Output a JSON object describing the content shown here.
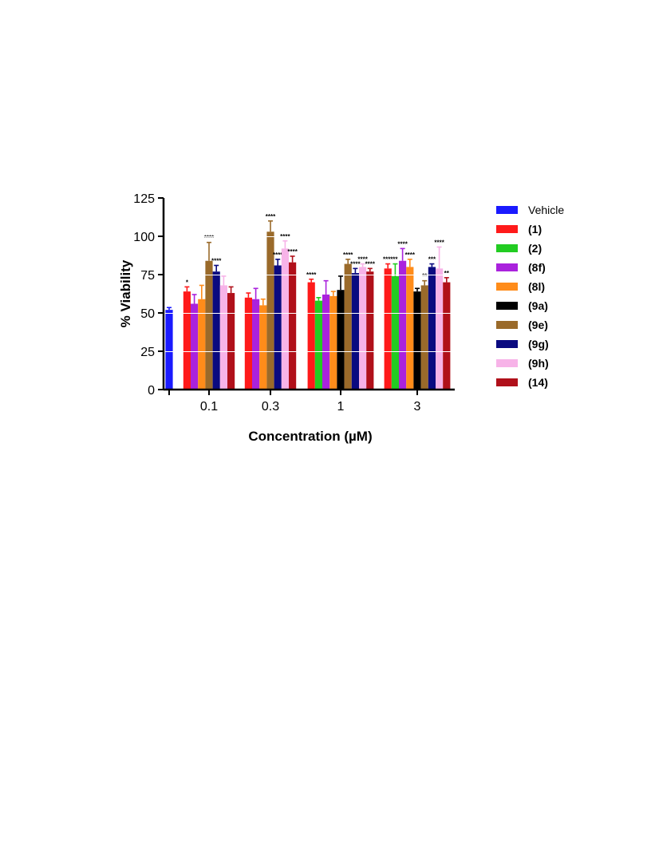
{
  "chart_data": {
    "type": "bar",
    "xlabel": "Concentration (µM)",
    "ylabel": "% Viability",
    "ylim": [
      0,
      125
    ],
    "yticks": [
      "0",
      "25",
      "50",
      "75",
      "100",
      "125"
    ],
    "categories": [
      "0.1",
      "0.3",
      "1",
      "3"
    ],
    "control": {
      "name": "Vehicle",
      "value": 52,
      "error": 1.5,
      "color": "#1a1aff"
    },
    "series": [
      {
        "name": "(1)",
        "color": "#ff1a1a",
        "values": [
          64,
          60,
          70,
          79
        ],
        "errors": [
          3,
          3,
          2,
          3
        ],
        "sig": [
          "*",
          "",
          "****",
          "****"
        ]
      },
      {
        "name": "(2)",
        "color": "#22cc22",
        "values": [
          null,
          null,
          58,
          74
        ],
        "errors": [
          null,
          null,
          2,
          8
        ],
        "sig": [
          "",
          "",
          "",
          "**"
        ]
      },
      {
        "name": "(8f)",
        "color": "#aa22dd",
        "values": [
          56,
          59,
          62,
          84
        ],
        "errors": [
          6,
          7,
          9,
          8
        ],
        "sig": [
          "",
          "",
          "",
          "****"
        ]
      },
      {
        "name": "(8l)",
        "color": "#ff8c1a",
        "values": [
          59,
          55,
          61,
          80
        ],
        "errors": [
          9,
          4,
          3,
          5
        ],
        "sig": [
          "",
          "",
          "",
          "****"
        ]
      },
      {
        "name": "(9a)",
        "color": "#000000",
        "values": [
          null,
          null,
          65,
          64
        ],
        "errors": [
          null,
          null,
          9,
          2
        ],
        "sig": [
          "",
          "",
          "",
          ""
        ]
      },
      {
        "name": "(9e)",
        "color": "#9a6a2a",
        "values": [
          84,
          103,
          82,
          68
        ],
        "errors": [
          12,
          7,
          3,
          3
        ],
        "sig": [
          "****",
          "****",
          "****",
          "**"
        ]
      },
      {
        "name": "(9g)",
        "color": "#0a0a80",
        "values": [
          77,
          81,
          76,
          80
        ],
        "errors": [
          4,
          4,
          3,
          2
        ],
        "sig": [
          "****",
          "****",
          "****",
          "***"
        ]
      },
      {
        "name": "(9h)",
        "color": "#f7b3e8",
        "values": [
          68,
          92,
          80,
          79
        ],
        "errors": [
          6,
          5,
          2,
          14
        ],
        "sig": [
          "",
          "****",
          "****",
          "****"
        ]
      },
      {
        "name": "(14)",
        "color": "#b0101a",
        "values": [
          63,
          83,
          77,
          70
        ],
        "errors": [
          4,
          4,
          2,
          3
        ],
        "sig": [
          "",
          "****",
          "****",
          "**"
        ]
      }
    ],
    "legend_position": "right",
    "grid": false
  }
}
